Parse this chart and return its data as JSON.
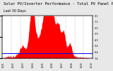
{
  "title": "Solar PV/Inverter Performance - Total PV Panel Power Output",
  "subtitle": "Last 30 Days",
  "bg_color": "#e8e8e8",
  "plot_bg_color": "#ffffff",
  "grid_color": "#aaaaaa",
  "bar_color": "#ff0000",
  "line_color": "#0000ff",
  "line_value": 0.12,
  "ylim": [
    0,
    1.0
  ],
  "xlim": [
    0,
    1.0
  ],
  "ylabel_right": [
    "7.4",
    "6.4",
    "5.4",
    "4.3",
    "3.3",
    "2.2",
    "1.1",
    "0.1"
  ],
  "num_points": 300,
  "title_fontsize": 4.0,
  "tick_fontsize": 2.5,
  "num_grid_lines": 10
}
